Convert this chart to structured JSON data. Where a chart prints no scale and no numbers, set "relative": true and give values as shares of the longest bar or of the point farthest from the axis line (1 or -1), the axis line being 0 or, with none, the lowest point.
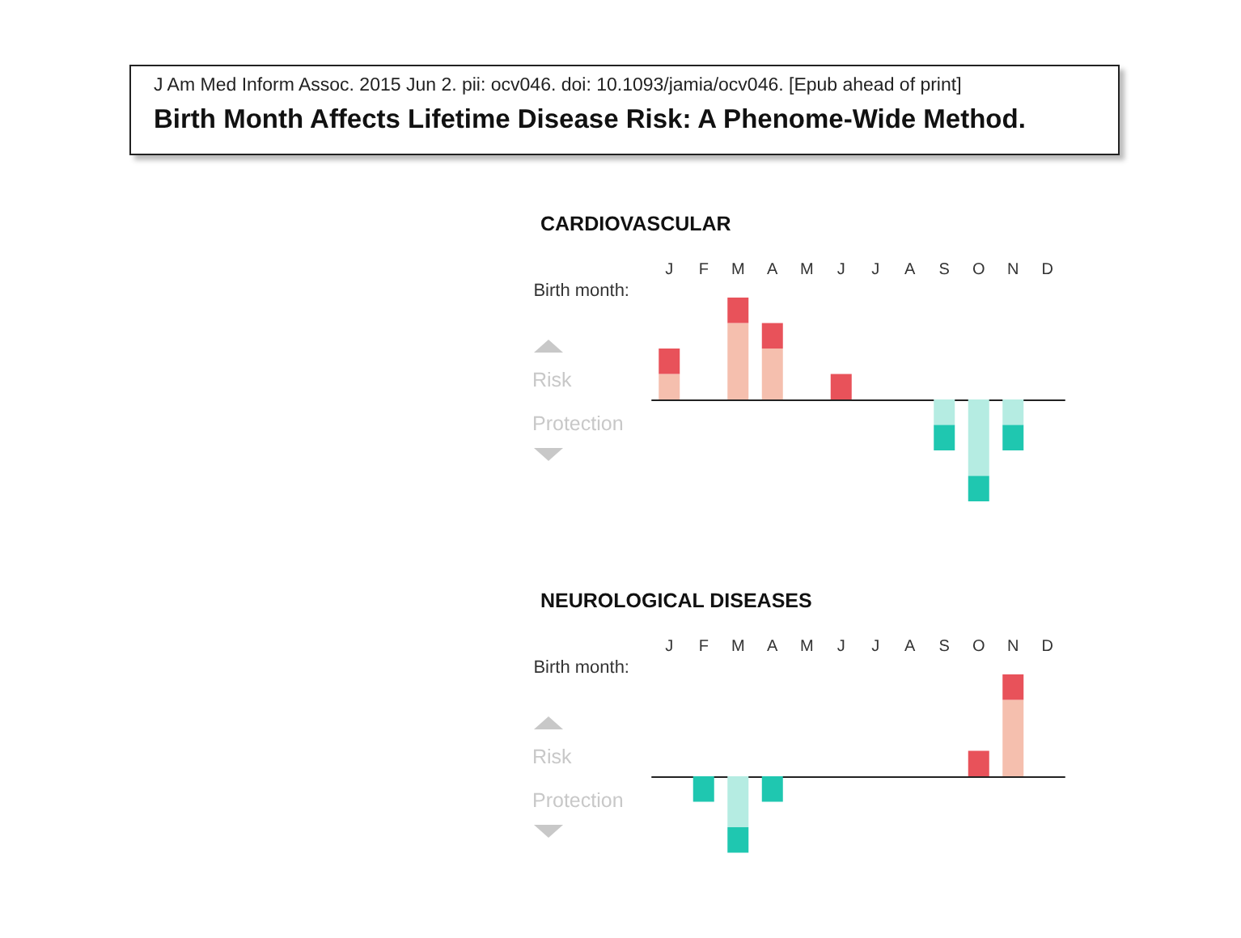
{
  "chart_data": [
    {
      "type": "bar",
      "title": "CARDIOVASCULAR",
      "xlabel": "Birth month:",
      "annotations": [
        "J Am Med Inform Assoc. 2015 Jun 2. pii: ocv046. doi: 10.1093/jamia/ocv046. [Epub ahead of print]",
        "Birth Month Affects Lifetime Disease Risk: A Phenome-Wide Method.",
        "Risk",
        "Protection"
      ],
      "categories": [
        "J",
        "F",
        "M",
        "A",
        "M",
        "J",
        "J",
        "A",
        "S",
        "O",
        "N",
        "D"
      ],
      "relative": true,
      "stacked": true,
      "series": [
        {
          "colors": [
            "#f5bfae",
            null,
            "#f5bfae",
            "#f5bfae",
            null,
            null,
            null,
            null,
            "#b5ece2",
            "#b5ece2",
            "#b5ece2",
            null
          ],
          "values": [
            0.25,
            null,
            0.75,
            0.5,
            null,
            null,
            null,
            null,
            -0.25,
            -0.75,
            -0.25,
            null
          ]
        },
        {
          "colors": [
            "#e8525a",
            null,
            "#e8525a",
            "#e8525a",
            null,
            "#e8525a",
            null,
            null,
            "#1fc7b0",
            "#1fc7b0",
            "#1fc7b0",
            null
          ],
          "values": [
            0.25,
            null,
            0.25,
            0.25,
            null,
            0.25,
            null,
            null,
            -0.25,
            -0.25,
            -0.25,
            null
          ]
        }
      ]
    },
    {
      "type": "bar",
      "title": "NEUROLOGICAL DISEASES",
      "xlabel": "Birth month:",
      "annotations": [
        "Risk",
        "Protection"
      ],
      "categories": [
        "J",
        "F",
        "M",
        "A",
        "M",
        "J",
        "J",
        "A",
        "S",
        "O",
        "N",
        "D"
      ],
      "relative": true,
      "stacked": true,
      "series": [
        {
          "colors": [
            null,
            null,
            "#b5ece2",
            null,
            null,
            null,
            null,
            null,
            null,
            null,
            "#f5bfae",
            null
          ],
          "values": [
            null,
            null,
            -0.5,
            null,
            null,
            null,
            null,
            null,
            null,
            null,
            0.75,
            null
          ]
        },
        {
          "colors": [
            null,
            "#1fc7b0",
            "#1fc7b0",
            "#1fc7b0",
            null,
            null,
            null,
            null,
            null,
            "#e8525a",
            "#e8525a",
            null
          ],
          "values": [
            null,
            -0.25,
            -0.25,
            -0.25,
            null,
            null,
            null,
            null,
            null,
            0.25,
            0.25,
            null
          ]
        }
      ]
    }
  ]
}
